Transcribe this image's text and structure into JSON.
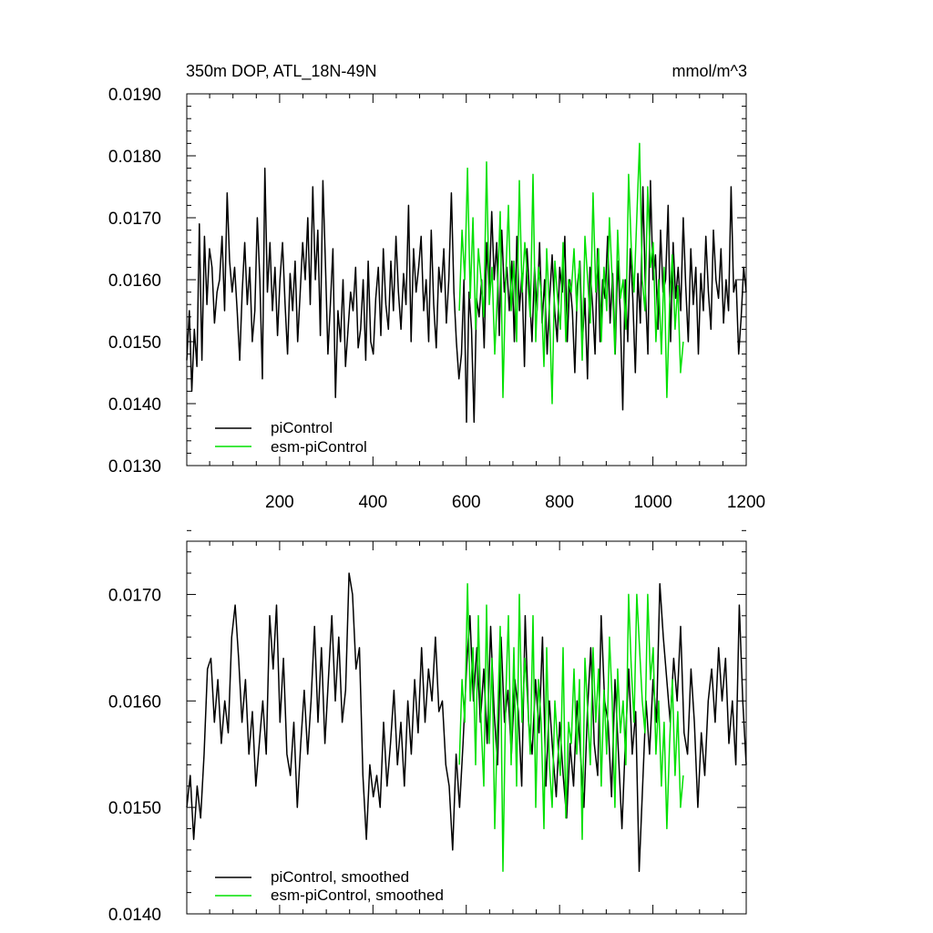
{
  "colors": {
    "picontrol": "#000000",
    "esm_picontrol": "#00e000"
  },
  "chart_data": [
    {
      "type": "line",
      "title": "350m DOP, ATL_18N-49N",
      "units": "mmol/m^3",
      "xlim": [
        1,
        1200
      ],
      "ylim": [
        0.013,
        0.019
      ],
      "x_ticks": [
        200,
        400,
        600,
        800,
        1000,
        1200
      ],
      "x_tick_labels": [
        "200",
        "400",
        "600",
        "800",
        "1000",
        "1200"
      ],
      "y_ticks": [
        0.013,
        0.014,
        0.015,
        0.016,
        0.017,
        0.018,
        0.019
      ],
      "y_tick_labels": [
        "0.0130",
        "0.0140",
        "0.0150",
        "0.0160",
        "0.0170",
        "0.0180",
        "0.0190"
      ],
      "legend_position": "lower-left",
      "series": [
        {
          "name": "piControl",
          "color": "#000000",
          "x_start": 1,
          "x_end": 1200,
          "values": [
            0.0147,
            0.0155,
            0.0142,
            0.0152,
            0.0146,
            0.0169,
            0.0147,
            0.0167,
            0.0156,
            0.0165,
            0.0162,
            0.0153,
            0.0158,
            0.016,
            0.0167,
            0.0155,
            0.0174,
            0.0163,
            0.0158,
            0.0162,
            0.0155,
            0.0147,
            0.0158,
            0.0166,
            0.0156,
            0.0162,
            0.015,
            0.0155,
            0.017,
            0.016,
            0.0144,
            0.0178,
            0.0158,
            0.0166,
            0.0155,
            0.0162,
            0.0151,
            0.016,
            0.0166,
            0.0156,
            0.0148,
            0.0161,
            0.0155,
            0.0163,
            0.015,
            0.0158,
            0.0166,
            0.016,
            0.017,
            0.0156,
            0.0175,
            0.016,
            0.0168,
            0.0151,
            0.0176,
            0.0163,
            0.0148,
            0.0156,
            0.0165,
            0.0141,
            0.0155,
            0.015,
            0.016,
            0.0146,
            0.0152,
            0.0158,
            0.0155,
            0.0162,
            0.0149,
            0.0152,
            0.016,
            0.0147,
            0.0163,
            0.015,
            0.0148,
            0.0157,
            0.0162,
            0.0151,
            0.0165,
            0.0156,
            0.0152,
            0.0163,
            0.0155,
            0.0167,
            0.0158,
            0.0152,
            0.0161,
            0.0156,
            0.0172,
            0.015,
            0.0165,
            0.0158,
            0.0162,
            0.0167,
            0.0155,
            0.016,
            0.015,
            0.0168,
            0.0156,
            0.0149,
            0.0162,
            0.0158,
            0.0165,
            0.0153,
            0.016,
            0.0174,
            0.0158,
            0.015,
            0.0144,
            0.0148,
            0.016,
            0.0137,
            0.0158,
            0.0152,
            0.0137,
            0.0157,
            0.0154,
            0.016,
            0.0149,
            0.0166,
            0.0158,
            0.0171,
            0.016,
            0.0166,
            0.0151,
            0.0168,
            0.0158,
            0.0162,
            0.0155,
            0.0163,
            0.015,
            0.0167,
            0.0155,
            0.0161,
            0.0146,
            0.0165,
            0.0158,
            0.015,
            0.0162,
            0.0155,
            0.0166,
            0.0153,
            0.016,
            0.0148,
            0.0157,
            0.0164,
            0.0155,
            0.015,
            0.0162,
            0.0158,
            0.0167,
            0.015,
            0.016,
            0.0155,
            0.0145,
            0.0159,
            0.0163,
            0.015,
            0.0157,
            0.0144,
            0.0162,
            0.0156,
            0.0148,
            0.0165,
            0.015,
            0.016,
            0.0157,
            0.0167,
            0.0153,
            0.0161,
            0.0148,
            0.0163,
            0.0155,
            0.0139,
            0.016,
            0.015,
            0.0165,
            0.0157,
            0.0145,
            0.0161,
            0.0153,
            0.0175,
            0.0158,
            0.0148,
            0.0176,
            0.016,
            0.0164,
            0.0152,
            0.0168,
            0.0158,
            0.016,
            0.0172,
            0.015,
            0.0166,
            0.0157,
            0.0162,
            0.0155,
            0.017,
            0.0159,
            0.015,
            0.0165,
            0.0156,
            0.0162,
            0.0148,
            0.0161,
            0.0155,
            0.0167,
            0.0158,
            0.0152,
            0.0168,
            0.016,
            0.0157,
            0.0165,
            0.0153,
            0.016,
            0.0155,
            0.0175,
            0.0158,
            0.016,
            0.0148,
            0.0154,
            0.0162,
            0.0158
          ]
        },
        {
          "name": "esm-piControl",
          "color": "#00e000",
          "x_start": 585,
          "x_end": 1065,
          "values": [
            0.0155,
            0.0168,
            0.016,
            0.0178,
            0.0157,
            0.017,
            0.0152,
            0.0165,
            0.016,
            0.0154,
            0.0179,
            0.0156,
            0.0162,
            0.0148,
            0.0158,
            0.0171,
            0.0141,
            0.016,
            0.0172,
            0.0155,
            0.0163,
            0.015,
            0.0176,
            0.0158,
            0.0166,
            0.016,
            0.0154,
            0.0177,
            0.015,
            0.0162,
            0.0158,
            0.0146,
            0.0165,
            0.0155,
            0.014,
            0.0163,
            0.0157,
            0.0152,
            0.0166,
            0.015,
            0.016,
            0.0158,
            0.0165,
            0.0155,
            0.0163,
            0.0147,
            0.0167,
            0.016,
            0.0153,
            0.0174,
            0.0158,
            0.0165,
            0.015,
            0.0162,
            0.0155,
            0.017,
            0.016,
            0.0148,
            0.0168,
            0.0157,
            0.016,
            0.0152,
            0.0177,
            0.0165,
            0.0158,
            0.017,
            0.0182,
            0.016,
            0.0155,
            0.0175,
            0.0162,
            0.0166,
            0.015,
            0.016,
            0.0148,
            0.0162,
            0.0141,
            0.0156,
            0.0164,
            0.0152,
            0.0159,
            0.0145,
            0.015
          ]
        }
      ]
    },
    {
      "type": "line",
      "xlim": [
        1,
        1200
      ],
      "ylim": [
        0.014,
        0.0175
      ],
      "x_ticks": [
        200,
        400,
        600,
        800,
        1000,
        1200
      ],
      "y_ticks": [
        0.014,
        0.015,
        0.016,
        0.017
      ],
      "y_tick_labels": [
        "0.0140",
        "0.0150",
        "0.0160",
        "0.0170"
      ],
      "legend_position": "lower-left",
      "series": [
        {
          "name": "piControl, smoothed",
          "color": "#000000",
          "x_start": 1,
          "x_end": 1200,
          "values": [
            0.015,
            0.0153,
            0.0147,
            0.0152,
            0.0149,
            0.0155,
            0.0163,
            0.0164,
            0.0158,
            0.0162,
            0.0156,
            0.016,
            0.0157,
            0.0166,
            0.0169,
            0.0164,
            0.0158,
            0.0162,
            0.0155,
            0.0159,
            0.0152,
            0.0156,
            0.016,
            0.0155,
            0.0168,
            0.0163,
            0.0169,
            0.0158,
            0.0164,
            0.0155,
            0.0153,
            0.0158,
            0.015,
            0.0156,
            0.0161,
            0.0155,
            0.016,
            0.0167,
            0.0158,
            0.0165,
            0.0156,
            0.0162,
            0.0168,
            0.016,
            0.0166,
            0.0158,
            0.0161,
            0.0172,
            0.017,
            0.0163,
            0.0165,
            0.0153,
            0.0147,
            0.0154,
            0.0151,
            0.0153,
            0.015,
            0.0158,
            0.0152,
            0.0156,
            0.0161,
            0.0154,
            0.0158,
            0.0152,
            0.016,
            0.0155,
            0.0162,
            0.0157,
            0.0165,
            0.0158,
            0.0163,
            0.016,
            0.0166,
            0.0159,
            0.016,
            0.0154,
            0.0152,
            0.0146,
            0.0155,
            0.015,
            0.0156,
            0.0163,
            0.0168,
            0.016,
            0.0165,
            0.0158,
            0.0163,
            0.0156,
            0.0167,
            0.0159,
            0.0154,
            0.0166,
            0.0158,
            0.0161,
            0.0155,
            0.0162,
            0.0159,
            0.0152,
            0.0168,
            0.0158,
            0.0155,
            0.0162,
            0.0157,
            0.0166,
            0.0152,
            0.016,
            0.0155,
            0.0151,
            0.0158,
            0.0153,
            0.0149,
            0.0156,
            0.0152,
            0.016,
            0.0155,
            0.015,
            0.0159,
            0.0165,
            0.0156,
            0.0153,
            0.0168,
            0.016,
            0.0158,
            0.0151,
            0.0162,
            0.0155,
            0.0148,
            0.0156,
            0.0163,
            0.0155,
            0.0159,
            0.0144,
            0.0152,
            0.016,
            0.0155,
            0.0162,
            0.0158,
            0.0171,
            0.0166,
            0.0162,
            0.0158,
            0.0164,
            0.016,
            0.0167,
            0.0157,
            0.0155,
            0.0163,
            0.0158,
            0.015,
            0.0157,
            0.0153,
            0.016,
            0.0163,
            0.0158,
            0.0165,
            0.016,
            0.0164,
            0.0156,
            0.016,
            0.0154,
            0.0169,
            0.016,
            0.0154
          ]
        },
        {
          "name": "esm-piControl, smoothed",
          "color": "#00e000",
          "x_start": 585,
          "x_end": 1065,
          "values": [
            0.0154,
            0.0162,
            0.0158,
            0.0171,
            0.016,
            0.0165,
            0.0154,
            0.0168,
            0.0158,
            0.0152,
            0.0169,
            0.0156,
            0.0164,
            0.0148,
            0.0158,
            0.0167,
            0.0144,
            0.016,
            0.0168,
            0.0154,
            0.0165,
            0.0152,
            0.017,
            0.0158,
            0.0164,
            0.016,
            0.0155,
            0.0168,
            0.015,
            0.0162,
            0.0158,
            0.0148,
            0.0165,
            0.0154,
            0.015,
            0.016,
            0.0156,
            0.0153,
            0.0165,
            0.0149,
            0.0158,
            0.0156,
            0.0163,
            0.0155,
            0.0162,
            0.0147,
            0.0164,
            0.0159,
            0.0154,
            0.0165,
            0.0158,
            0.0163,
            0.0152,
            0.0161,
            0.0155,
            0.0166,
            0.016,
            0.015,
            0.0163,
            0.0157,
            0.016,
            0.0154,
            0.017,
            0.0163,
            0.0158,
            0.017,
            0.0165,
            0.016,
            0.0157,
            0.017,
            0.0162,
            0.0165,
            0.0155,
            0.016,
            0.0152,
            0.0158,
            0.0148,
            0.0156,
            0.0162,
            0.0153,
            0.0159,
            0.015,
            0.0153
          ]
        }
      ]
    }
  ]
}
